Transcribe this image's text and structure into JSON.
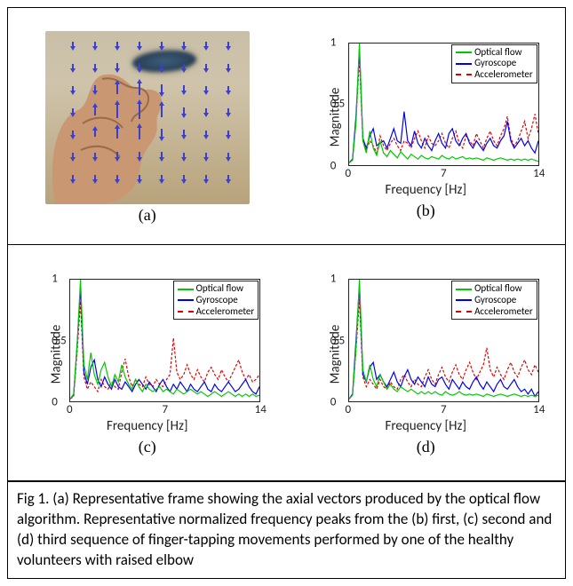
{
  "panel_labels": {
    "a": "(a)",
    "b": "(b)",
    "c": "(c)",
    "d": "(d)"
  },
  "caption": "Fig 1. (a) Representative frame showing the axial vectors produced by the optical flow algorithm. Representative normalized frequency peaks from the (b) first, (c) second and (d) third sequence of finger-tapping movements performed by one of the healthy volunteers with raised elbow",
  "axis": {
    "xlabel": "Frequency [Hz]",
    "ylabel": "Magnitude",
    "xlim": [
      0,
      14
    ],
    "ylim": [
      0,
      1
    ],
    "xticks": [
      0,
      7,
      14
    ],
    "yticks": [
      0,
      0.5,
      1
    ]
  },
  "legend": {
    "items": [
      {
        "label": "Optical flow",
        "swatch": "lg-g"
      },
      {
        "label": "Gyroscope",
        "swatch": "lg-b"
      },
      {
        "label": "Accelerometer",
        "swatch": "lg-r"
      }
    ]
  },
  "colors": {
    "optical_flow": "#00c800",
    "gyroscope": "#0000ee",
    "accelerometer": "#e00000",
    "axis": "#222222",
    "bg": "#ffffff"
  },
  "spectra": {
    "b": {
      "green": [
        0.02,
        0.04,
        0.35,
        1.0,
        0.2,
        0.1,
        0.28,
        0.14,
        0.08,
        0.2,
        0.1,
        0.07,
        0.12,
        0.09,
        0.06,
        0.11,
        0.08,
        0.05,
        0.09,
        0.07,
        0.05,
        0.08,
        0.06,
        0.05,
        0.07,
        0.06,
        0.05,
        0.08,
        0.06,
        0.05,
        0.07,
        0.05,
        0.06,
        0.07,
        0.05,
        0.06,
        0.05,
        0.06,
        0.05,
        0.04,
        0.06,
        0.05,
        0.04,
        0.05,
        0.06,
        0.05,
        0.04,
        0.05,
        0.04,
        0.05,
        0.04,
        0.05,
        0.04,
        0.05,
        0.04,
        0.03
      ],
      "blue": [
        0.02,
        0.05,
        0.4,
        0.96,
        0.22,
        0.14,
        0.24,
        0.3,
        0.16,
        0.18,
        0.2,
        0.14,
        0.22,
        0.3,
        0.2,
        0.18,
        0.44,
        0.2,
        0.16,
        0.28,
        0.18,
        0.14,
        0.22,
        0.16,
        0.12,
        0.2,
        0.26,
        0.18,
        0.14,
        0.26,
        0.3,
        0.2,
        0.16,
        0.22,
        0.26,
        0.18,
        0.14,
        0.2,
        0.16,
        0.12,
        0.18,
        0.22,
        0.16,
        0.14,
        0.2,
        0.24,
        0.36,
        0.2,
        0.14,
        0.18,
        0.22,
        0.16,
        0.2,
        0.14,
        0.1,
        0.2
      ],
      "red": [
        0.02,
        0.04,
        0.38,
        0.88,
        0.2,
        0.12,
        0.2,
        0.16,
        0.1,
        0.24,
        0.16,
        0.12,
        0.18,
        0.22,
        0.16,
        0.12,
        0.2,
        0.18,
        0.14,
        0.22,
        0.28,
        0.2,
        0.14,
        0.24,
        0.18,
        0.16,
        0.2,
        0.26,
        0.18,
        0.14,
        0.22,
        0.28,
        0.18,
        0.14,
        0.24,
        0.2,
        0.16,
        0.26,
        0.2,
        0.14,
        0.22,
        0.28,
        0.2,
        0.16,
        0.24,
        0.3,
        0.4,
        0.22,
        0.16,
        0.2,
        0.28,
        0.36,
        0.22,
        0.3,
        0.42,
        0.26
      ]
    },
    "c": {
      "green": [
        0.02,
        0.06,
        0.45,
        1.0,
        0.3,
        0.18,
        0.4,
        0.22,
        0.14,
        0.26,
        0.32,
        0.2,
        0.12,
        0.22,
        0.16,
        0.3,
        0.2,
        0.14,
        0.1,
        0.18,
        0.12,
        0.08,
        0.14,
        0.1,
        0.08,
        0.1,
        0.12,
        0.08,
        0.1,
        0.08,
        0.06,
        0.1,
        0.08,
        0.06,
        0.08,
        0.1,
        0.08,
        0.06,
        0.08,
        0.06,
        0.04,
        0.06,
        0.08,
        0.06,
        0.04,
        0.06,
        0.08,
        0.06,
        0.04,
        0.06,
        0.04,
        0.06,
        0.04,
        0.06,
        0.04,
        0.05
      ],
      "blue": [
        0.02,
        0.05,
        0.46,
        0.94,
        0.24,
        0.14,
        0.28,
        0.34,
        0.18,
        0.12,
        0.2,
        0.14,
        0.1,
        0.18,
        0.12,
        0.1,
        0.16,
        0.12,
        0.08,
        0.14,
        0.18,
        0.14,
        0.1,
        0.16,
        0.12,
        0.08,
        0.14,
        0.18,
        0.12,
        0.08,
        0.14,
        0.1,
        0.16,
        0.12,
        0.08,
        0.14,
        0.1,
        0.08,
        0.12,
        0.16,
        0.1,
        0.08,
        0.14,
        0.1,
        0.08,
        0.12,
        0.16,
        0.12,
        0.08,
        0.1,
        0.14,
        0.18,
        0.12,
        0.08,
        0.06,
        0.12
      ],
      "red": [
        0.02,
        0.04,
        0.4,
        0.82,
        0.2,
        0.1,
        0.16,
        0.12,
        0.08,
        0.18,
        0.12,
        0.1,
        0.16,
        0.12,
        0.1,
        0.24,
        0.35,
        0.2,
        0.12,
        0.18,
        0.14,
        0.12,
        0.2,
        0.14,
        0.12,
        0.18,
        0.14,
        0.12,
        0.18,
        0.22,
        0.52,
        0.24,
        0.18,
        0.22,
        0.3,
        0.22,
        0.18,
        0.26,
        0.2,
        0.16,
        0.24,
        0.28,
        0.22,
        0.18,
        0.26,
        0.2,
        0.16,
        0.22,
        0.28,
        0.34,
        0.24,
        0.18,
        0.22,
        0.16,
        0.18,
        0.22
      ]
    },
    "d": {
      "green": [
        0.02,
        0.05,
        0.44,
        1.0,
        0.26,
        0.16,
        0.3,
        0.18,
        0.12,
        0.22,
        0.16,
        0.1,
        0.14,
        0.1,
        0.08,
        0.12,
        0.1,
        0.08,
        0.1,
        0.08,
        0.06,
        0.08,
        0.06,
        0.08,
        0.06,
        0.08,
        0.06,
        0.05,
        0.08,
        0.06,
        0.05,
        0.06,
        0.08,
        0.06,
        0.05,
        0.06,
        0.05,
        0.06,
        0.05,
        0.04,
        0.06,
        0.05,
        0.04,
        0.05,
        0.06,
        0.05,
        0.04,
        0.05,
        0.06,
        0.05,
        0.04,
        0.05,
        0.04,
        0.05,
        0.04,
        0.05
      ],
      "blue": [
        0.02,
        0.06,
        0.5,
        0.95,
        0.22,
        0.16,
        0.28,
        0.32,
        0.18,
        0.22,
        0.16,
        0.12,
        0.18,
        0.24,
        0.16,
        0.12,
        0.2,
        0.26,
        0.18,
        0.14,
        0.2,
        0.16,
        0.12,
        0.2,
        0.14,
        0.12,
        0.18,
        0.2,
        0.14,
        0.1,
        0.18,
        0.14,
        0.1,
        0.16,
        0.12,
        0.1,
        0.16,
        0.2,
        0.14,
        0.1,
        0.16,
        0.12,
        0.08,
        0.14,
        0.18,
        0.12,
        0.1,
        0.14,
        0.18,
        0.12,
        0.08,
        0.1,
        0.06,
        0.1,
        0.04,
        0.08
      ],
      "red": [
        0.02,
        0.05,
        0.42,
        0.84,
        0.2,
        0.12,
        0.18,
        0.14,
        0.1,
        0.18,
        0.12,
        0.1,
        0.16,
        0.12,
        0.1,
        0.18,
        0.22,
        0.16,
        0.12,
        0.18,
        0.14,
        0.12,
        0.2,
        0.26,
        0.18,
        0.14,
        0.22,
        0.28,
        0.2,
        0.16,
        0.24,
        0.3,
        0.22,
        0.18,
        0.26,
        0.32,
        0.24,
        0.18,
        0.24,
        0.3,
        0.44,
        0.26,
        0.2,
        0.28,
        0.22,
        0.18,
        0.26,
        0.32,
        0.24,
        0.2,
        0.28,
        0.34,
        0.26,
        0.22,
        0.3,
        0.24
      ]
    }
  },
  "vectors": {
    "cols": [
      30,
      55,
      80,
      105,
      130,
      155,
      180,
      205
    ],
    "rows": [
      15,
      40,
      65,
      90,
      115,
      140,
      165
    ],
    "dir_map": [
      [
        "d",
        "d",
        "d",
        "d",
        "d",
        "d",
        "d",
        "d"
      ],
      [
        "d",
        "d",
        "d",
        "d",
        "d",
        "d",
        "d",
        "d"
      ],
      [
        "d",
        "d",
        "u",
        "u",
        "d",
        "d",
        "d",
        "d"
      ],
      [
        "d",
        "u",
        "u",
        "u",
        "u",
        "d",
        "d",
        "d"
      ],
      [
        "d",
        "u",
        "u",
        "u",
        "d",
        "d",
        "d",
        "d"
      ],
      [
        "d",
        "d",
        "d",
        "d",
        "d",
        "d",
        "d",
        "d"
      ],
      [
        "d",
        "d",
        "d",
        "d",
        "d",
        "d",
        "d",
        "d"
      ]
    ],
    "len_map": [
      [
        6,
        6,
        6,
        6,
        6,
        6,
        6,
        6
      ],
      [
        6,
        6,
        7,
        7,
        7,
        6,
        6,
        6
      ],
      [
        6,
        7,
        12,
        14,
        10,
        7,
        6,
        6
      ],
      [
        6,
        10,
        16,
        18,
        14,
        8,
        6,
        6
      ],
      [
        6,
        8,
        12,
        14,
        10,
        7,
        6,
        6
      ],
      [
        6,
        6,
        7,
        7,
        7,
        6,
        6,
        6
      ],
      [
        6,
        6,
        6,
        6,
        6,
        6,
        6,
        6
      ]
    ]
  }
}
